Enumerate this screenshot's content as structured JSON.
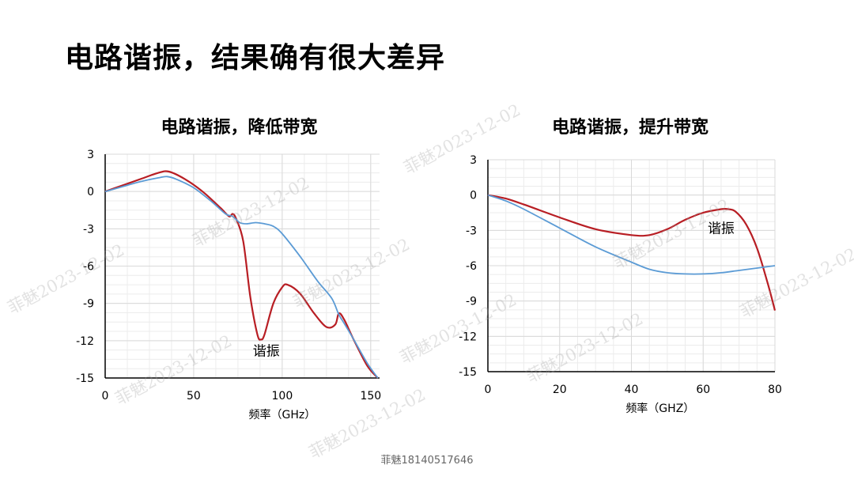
{
  "slide": {
    "title": "电路谐振，结果确有很大差异",
    "footer": "菲魅18140517646",
    "watermark": "菲魅2023-12-02"
  },
  "colors": {
    "series_red": "#B81E24",
    "series_blue": "#5B9BD5",
    "grid": "#d9d9d9",
    "axis": "#000000"
  },
  "chart_data": [
    {
      "type": "line",
      "title": "电路谐振，降低带宽",
      "xlabel": "频率（GHz）",
      "ylabel": "",
      "xlim": [
        0,
        155
      ],
      "ylim": [
        -15,
        3
      ],
      "xticks": [
        0,
        50,
        100,
        150
      ],
      "yticks": [
        3,
        0,
        -3,
        -6,
        -9,
        -12,
        -15
      ],
      "grid": true,
      "series": [
        {
          "x": [
            0,
            10,
            20,
            30,
            36,
            45,
            55,
            65,
            70,
            72,
            74,
            78,
            82,
            86,
            88,
            90,
            95,
            100,
            103,
            110,
            118,
            125,
            130,
            132,
            135,
            140,
            148,
            154
          ],
          "y": [
            0,
            0.5,
            1.0,
            1.5,
            1.6,
            1.0,
            0,
            -1.3,
            -2.0,
            -1.8,
            -2.2,
            -4.0,
            -8.5,
            -11.5,
            -11.9,
            -11.5,
            -9.0,
            -7.7,
            -7.5,
            -8.2,
            -9.8,
            -10.9,
            -10.7,
            -9.8,
            -10.3,
            -11.8,
            -14.0,
            -15.0
          ]
        },
        {
          "x": [
            0,
            10,
            20,
            30,
            35,
            40,
            50,
            60,
            68,
            72,
            76,
            80,
            85,
            90,
            95,
            100,
            110,
            120,
            128,
            132,
            135,
            140,
            148,
            154
          ],
          "y": [
            0,
            0.4,
            0.8,
            1.1,
            1.2,
            1.0,
            0.3,
            -0.8,
            -1.8,
            -2.0,
            -2.5,
            -2.6,
            -2.5,
            -2.6,
            -2.8,
            -3.4,
            -5.2,
            -7.2,
            -8.6,
            -9.9,
            -10.6,
            -11.8,
            -13.8,
            -15.0
          ]
        }
      ],
      "annotations": [
        {
          "text": "谐振",
          "x": 91,
          "y": -13.2
        }
      ]
    },
    {
      "type": "line",
      "title": "电路谐振，提升带宽",
      "xlabel": "频率（GHZ）",
      "ylabel": "",
      "xlim": [
        0,
        80
      ],
      "ylim": [
        -15,
        3
      ],
      "xticks": [
        0,
        20,
        40,
        60,
        80
      ],
      "yticks": [
        3,
        0,
        -3,
        -6,
        -9,
        -12,
        -15
      ],
      "grid": true,
      "series": [
        {
          "x": [
            0,
            5,
            10,
            20,
            30,
            40,
            45,
            50,
            55,
            60,
            65,
            67,
            69,
            72,
            75,
            78,
            80
          ],
          "y": [
            0,
            -0.3,
            -0.8,
            -1.9,
            -2.9,
            -3.4,
            -3.4,
            -2.9,
            -2.1,
            -1.5,
            -1.2,
            -1.2,
            -1.4,
            -2.5,
            -4.5,
            -7.5,
            -9.8
          ]
        },
        {
          "x": [
            0,
            5,
            10,
            20,
            30,
            40,
            45,
            50,
            55,
            60,
            65,
            70,
            75,
            80
          ],
          "y": [
            0,
            -0.5,
            -1.2,
            -2.8,
            -4.4,
            -5.7,
            -6.3,
            -6.6,
            -6.7,
            -6.7,
            -6.6,
            -6.4,
            -6.2,
            -6.0
          ]
        }
      ],
      "annotations": [
        {
          "text": "谐振",
          "x": 65,
          "y": -3.2
        }
      ]
    }
  ]
}
